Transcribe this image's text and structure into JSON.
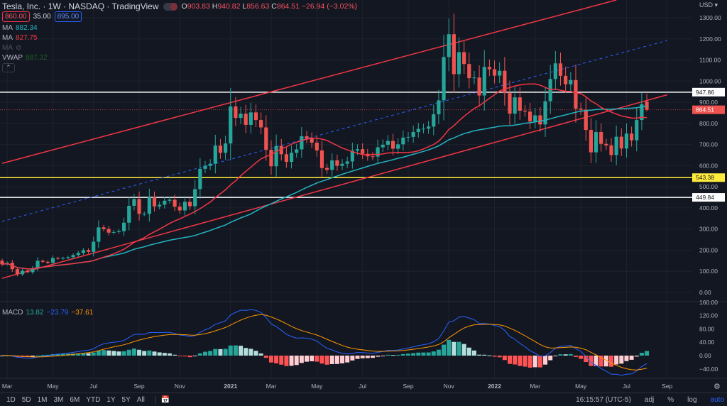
{
  "header": {
    "title": "Tesla, Inc. · 1W · NASDAQ · TradingView",
    "o_label": "O",
    "o": "903.83",
    "h_label": "H",
    "h": "940.82",
    "l_label": "L",
    "l": "856.63",
    "c_label": "C",
    "c": "864.51",
    "change": "−26.94 (−3.02%)",
    "bid": "860.00",
    "spread": "35.00",
    "ask": "895.00"
  },
  "legend": {
    "ma1_label": "MA",
    "ma1": "882.34",
    "ma2_label": "MA",
    "ma2": "827.75",
    "ma3_label": "MA",
    "vwap_label": "VWAP",
    "vwap": "887.32",
    "macd_label": "MACD",
    "macd": "13.82",
    "macd_line": "−23.79",
    "signal": "−37.61"
  },
  "colors": {
    "up": "#26a69a",
    "down": "#ef5350",
    "ma_fast": "#f23645",
    "ma_slow": "#22b5c0",
    "macd": "#2962ff",
    "signal": "#ff9800",
    "channel": "#f23645"
  },
  "bottom": {
    "ranges": [
      "1D",
      "5D",
      "1M",
      "3M",
      "6M",
      "YTD",
      "1Y",
      "5Y",
      "All"
    ],
    "time": "16:15:57 (UTC-5)",
    "adj": "adj",
    "pct": "%",
    "log": "log",
    "auto": "auto"
  },
  "chart_data": {
    "type": "candlestick",
    "currency": "USD ▾",
    "interval": "1W",
    "start_week": "2020-02-24",
    "closes": [
      133,
      140,
      110,
      86,
      103,
      96,
      115,
      150,
      145,
      140,
      163,
      160,
      163,
      167,
      177,
      187,
      200,
      192,
      240,
      308,
      300,
      283,
      286,
      290,
      330,
      410,
      442,
      372,
      372,
      450,
      407,
      415,
      434,
      439,
      406,
      388,
      429,
      408,
      489,
      585,
      599,
      609,
      695,
      661,
      705,
      880,
      826,
      846,
      793,
      852,
      816,
      781,
      675,
      597,
      693,
      654,
      618,
      661,
      677,
      739,
      729,
      709,
      672,
      589,
      580,
      625,
      599,
      609,
      620,
      671,
      678,
      656,
      644,
      643,
      687,
      699,
      717,
      680,
      701,
      733,
      736,
      759,
      774,
      775,
      785,
      843,
      909,
      1114,
      1222,
      1033,
      1137,
      1081,
      1014,
      1017,
      932,
      1067,
      1056,
      1026,
      1049,
      943,
      846,
      923,
      860,
      856,
      809,
      838,
      795,
      905,
      1010,
      1084,
      1025,
      985,
      1005,
      870,
      865,
      769,
      663,
      759,
      703,
      696,
      650,
      737,
      681,
      752,
      720,
      816,
      891,
      864.51
    ],
    "first_open": 150,
    "last_candle": {
      "open": 903.83,
      "high": 940.82,
      "low": 856.63,
      "close": 864.51
    },
    "y_ticks": [
      "1300.00",
      "1200.00",
      "1100.00",
      "1000.00",
      "900.00",
      "800.00",
      "700.00",
      "600.00",
      "500.00",
      "400.00",
      "300.00",
      "200.00",
      "100.00",
      "0.00"
    ],
    "y_range": [
      0,
      1300
    ],
    "macd_ticks": [
      "160.00",
      "120.00",
      "80.00",
      "40.00",
      "0.00",
      "−40.00"
    ],
    "macd_range": [
      -40,
      160
    ],
    "x_ticks": [
      {
        "label": "Mar",
        "week": 1
      },
      {
        "label": "May",
        "week": 10
      },
      {
        "label": "Jul",
        "week": 18
      },
      {
        "label": "Sep",
        "week": 27
      },
      {
        "label": "Nov",
        "week": 35
      },
      {
        "label": "2021",
        "week": 45
      },
      {
        "label": "Mar",
        "week": 53
      },
      {
        "label": "May",
        "week": 62
      },
      {
        "label": "Jul",
        "week": 71
      },
      {
        "label": "Sep",
        "week": 80
      },
      {
        "label": "Nov",
        "week": 88
      },
      {
        "label": "2022",
        "week": 97
      },
      {
        "label": "Mar",
        "week": 105
      },
      {
        "label": "May",
        "week": 114
      },
      {
        "label": "Jul",
        "week": 123
      },
      {
        "label": "Sep",
        "week": 131
      }
    ],
    "hlines": [
      {
        "price": 947.86,
        "label": "947.86",
        "color": "#ffffff"
      },
      {
        "price": 543.38,
        "label": "543.38",
        "color": "#ffeb3b"
      },
      {
        "price": 449.84,
        "label": "449.84",
        "color": "#ffffff"
      }
    ],
    "last_price": {
      "price": 864.51,
      "label": "864.51"
    },
    "trendlines": [
      {
        "name": "channel-upper",
        "from": [
          0,
          611
        ],
        "to": [
          121,
          1384
        ],
        "dashed": false
      },
      {
        "name": "channel-lower",
        "from": [
          0,
          67
        ],
        "to": [
          131,
          935
        ],
        "dashed": false
      },
      {
        "name": "channel-mid",
        "from": [
          0,
          336
        ],
        "to": [
          131,
          1192
        ],
        "dashed": true
      }
    ],
    "ma_periods": [
      20,
      50
    ]
  }
}
